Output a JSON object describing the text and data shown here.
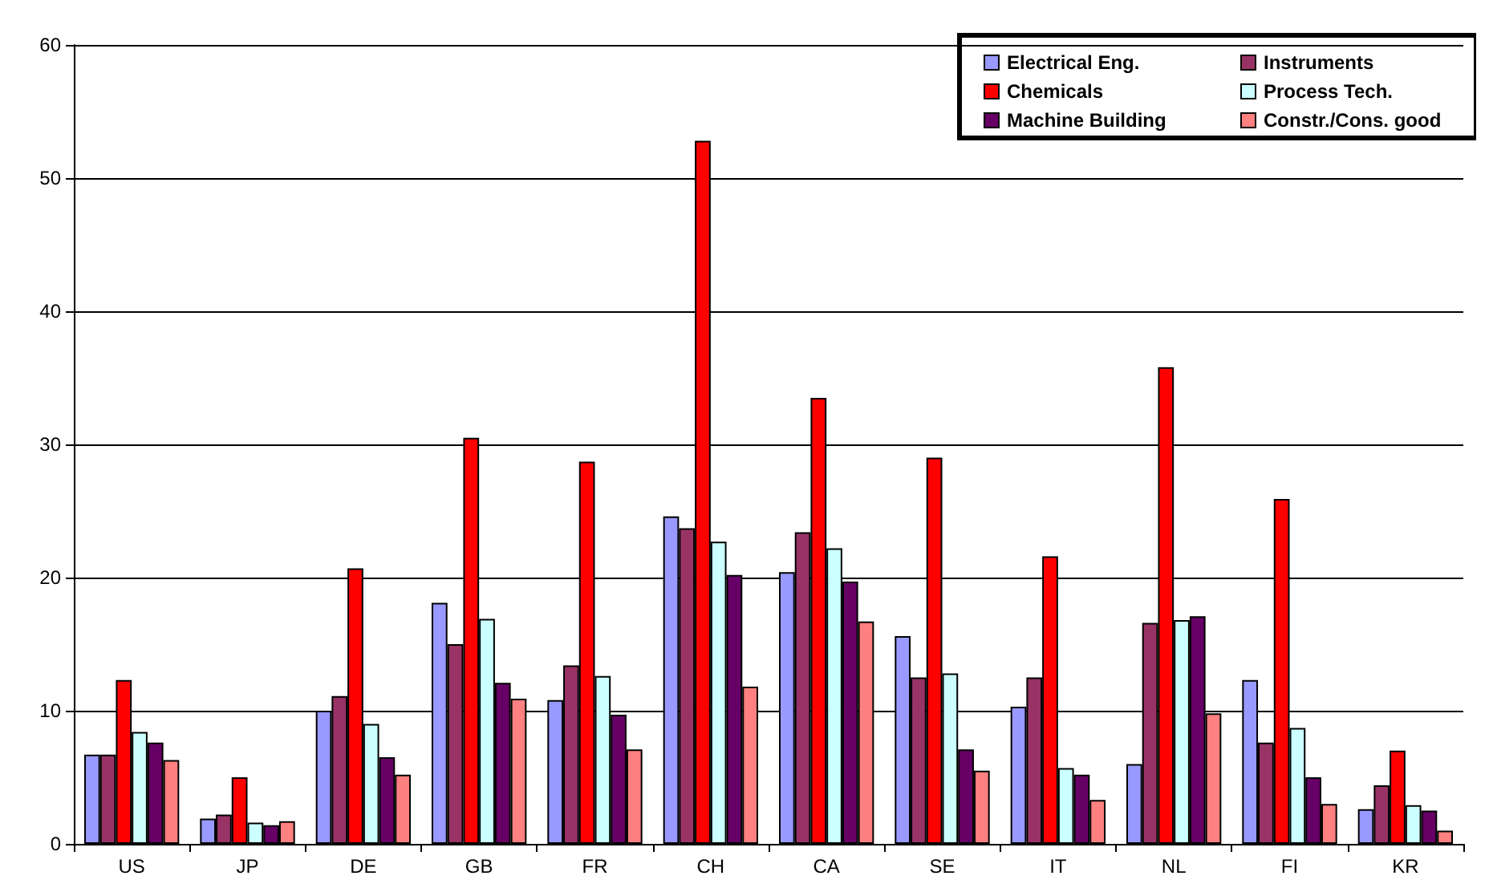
{
  "chart_data": {
    "type": "bar",
    "categories": [
      "US",
      "JP",
      "DE",
      "GB",
      "FR",
      "CH",
      "CA",
      "SE",
      "IT",
      "NL",
      "FI",
      "KR"
    ],
    "series": [
      {
        "name": "Electrical Eng.",
        "color": "#9999ff",
        "values": [
          6.7,
          1.9,
          10.0,
          18.1,
          10.8,
          24.6,
          20.4,
          15.6,
          10.3,
          6.0,
          12.3,
          2.6
        ]
      },
      {
        "name": "Instruments",
        "color": "#993366",
        "values": [
          6.7,
          2.2,
          11.1,
          15.0,
          13.4,
          23.7,
          23.4,
          12.5,
          12.5,
          16.6,
          7.6,
          4.4
        ]
      },
      {
        "name": "Chemicals",
        "color": "#ff0000",
        "values": [
          12.3,
          5.0,
          20.7,
          30.5,
          28.7,
          52.8,
          33.5,
          29.0,
          21.6,
          35.8,
          25.9,
          7.0
        ]
      },
      {
        "name": "Process Tech.",
        "color": "#ccffff",
        "values": [
          8.4,
          1.6,
          9.0,
          16.9,
          12.6,
          22.7,
          22.2,
          12.8,
          5.7,
          16.8,
          8.7,
          2.9
        ]
      },
      {
        "name": "Machine Building",
        "color": "#660066",
        "values": [
          7.6,
          1.4,
          6.5,
          12.1,
          9.7,
          20.2,
          19.7,
          7.1,
          5.2,
          17.1,
          5.0,
          2.5
        ]
      },
      {
        "name": "Constr./Cons. good",
        "color": "#ff8080",
        "values": [
          6.3,
          1.7,
          5.2,
          10.9,
          7.1,
          11.8,
          16.7,
          5.5,
          3.3,
          9.8,
          3.0,
          1.0
        ]
      }
    ],
    "ylim": [
      0,
      60
    ],
    "yticks": [
      0,
      10,
      20,
      30,
      40,
      50,
      60
    ],
    "grid": "y",
    "legend": "top right"
  }
}
